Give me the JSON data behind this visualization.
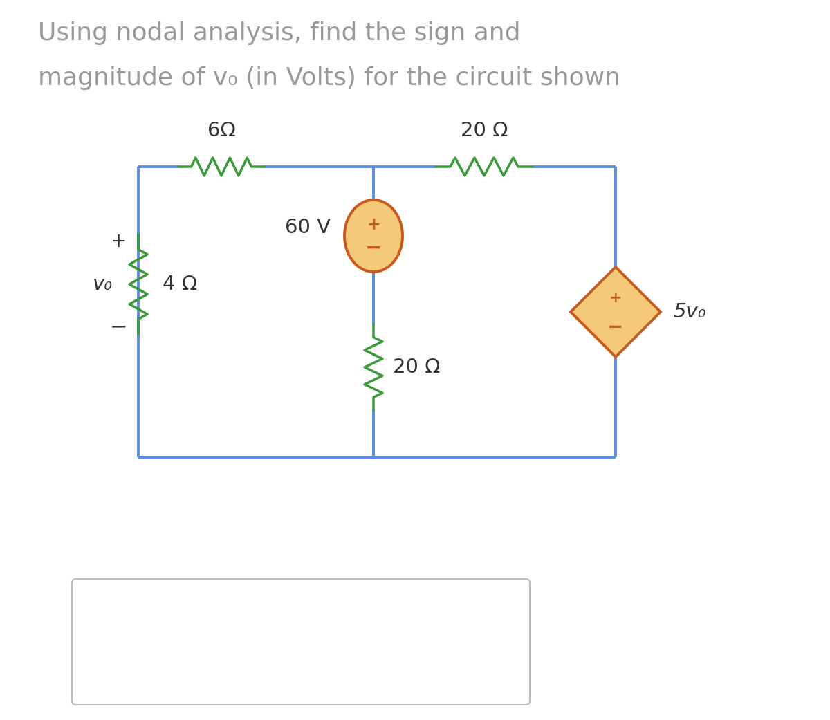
{
  "title_line1": "Using nodal analysis, find the sign and",
  "title_line2": "magnitude of v₀ (in Volts) for the circuit shown",
  "title_fontsize": 26,
  "title_color": "#999999",
  "circuit_color": "#5b8dd9",
  "resistor_color": "#3a9a3a",
  "source_fill": "#f5c97a",
  "source_border": "#c85a20",
  "text_color": "#333333",
  "bg_color": "#ffffff",
  "answer_box_color": "#bbbbbb",
  "R_6_label": "6Ω",
  "R_20_top_label": "20 Ω",
  "R_4_label": "4 Ω",
  "R_20_mid_label": "20 Ω",
  "V_label": "60 V",
  "dep_source_label": "5v₀",
  "vo_label": "v₀",
  "plus": "+",
  "minus": "−"
}
